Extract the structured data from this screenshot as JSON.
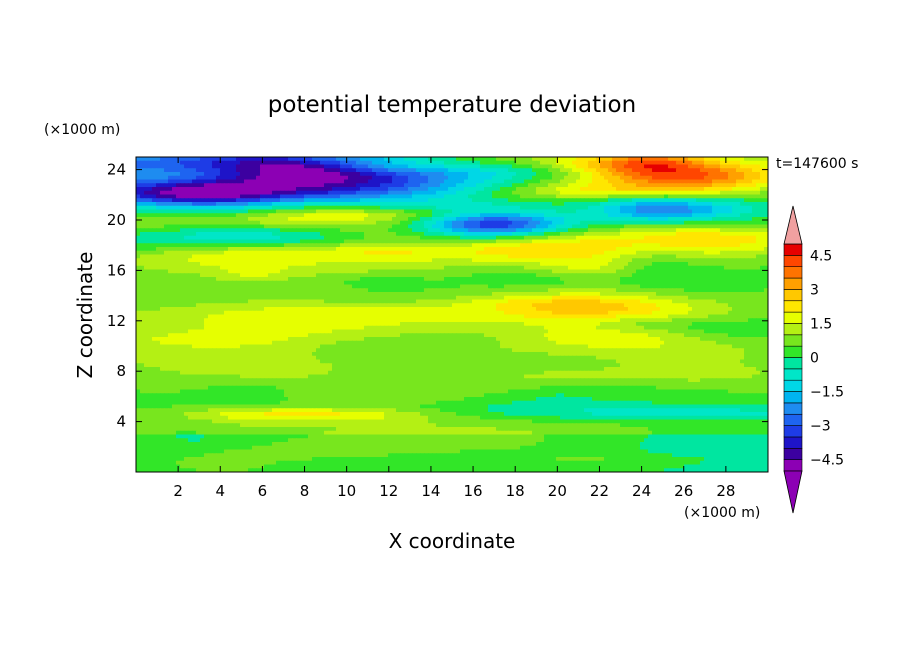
{
  "chart_data": {
    "type": "heatmap",
    "title": "potential temperature deviation",
    "xlabel": "X coordinate",
    "ylabel": "Z coordinate",
    "x_unit": "(×1000 m)",
    "y_unit": "(×1000 m)",
    "time_label": "t=147600 s",
    "xlim": [
      0,
      30
    ],
    "ylim": [
      0,
      25
    ],
    "x_ticks": [
      2,
      4,
      6,
      8,
      10,
      12,
      14,
      16,
      18,
      20,
      22,
      24,
      26,
      28
    ],
    "y_ticks": [
      4,
      8,
      12,
      16,
      20,
      24
    ],
    "colorbar": {
      "levels": [
        -5,
        -4.5,
        -4,
        -3.5,
        -3,
        -2.5,
        -2,
        -1.5,
        -1,
        -0.5,
        0,
        0.5,
        1,
        1.5,
        2,
        2.5,
        3,
        3.5,
        4,
        4.5,
        5
      ],
      "labels": [
        "4.5",
        "3",
        "1.5",
        "0",
        "−1.5",
        "−3",
        "−4.5"
      ],
      "label_values": [
        4.5,
        3,
        1.5,
        0,
        -1.5,
        -3,
        -4.5
      ],
      "colors": [
        "#8c00b4",
        "#3c00a0",
        "#1e14c8",
        "#1e3ce6",
        "#1e64f0",
        "#1e8cf0",
        "#00b4f0",
        "#00d7e6",
        "#00e6c8",
        "#00e6a0",
        "#32e628",
        "#78e61e",
        "#b4f014",
        "#e6ff00",
        "#ffe600",
        "#ffc800",
        "#ffa000",
        "#ff7300",
        "#ff4600",
        "#e60000"
      ],
      "under_color": "#8c00b4",
      "over_color": "#f0a0a0"
    }
  }
}
